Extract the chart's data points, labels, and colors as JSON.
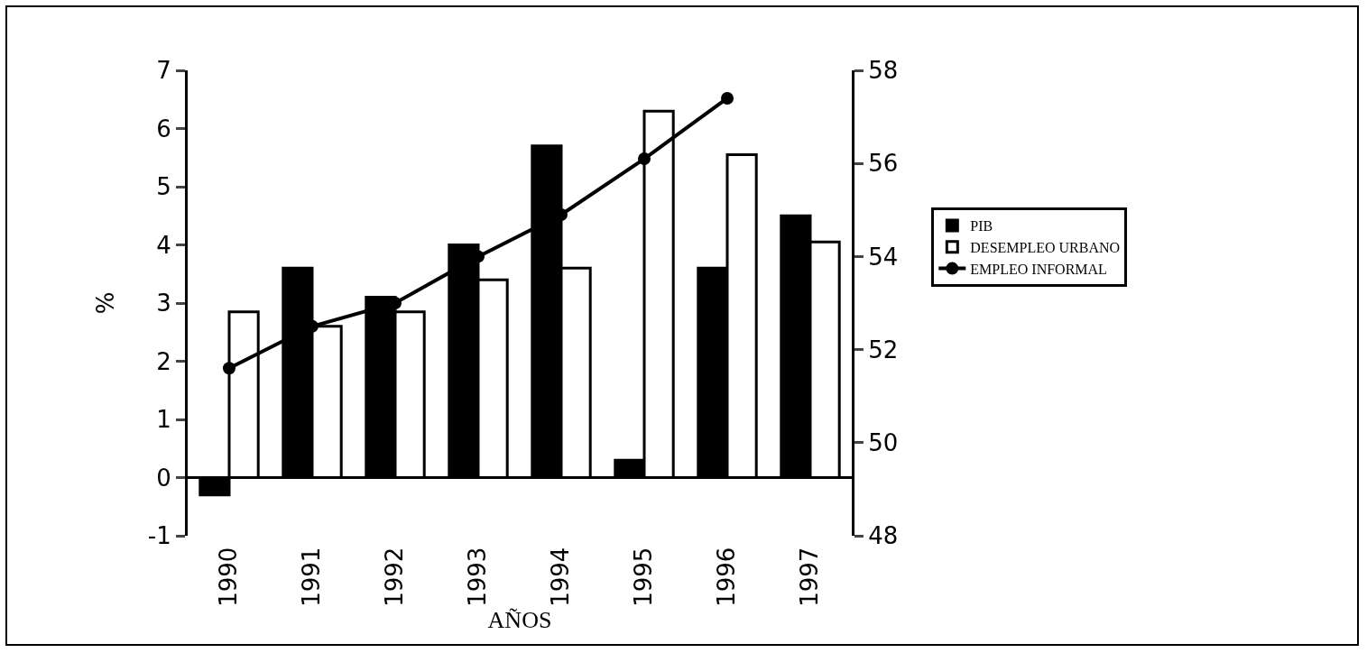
{
  "chart_data": {
    "type": "bar",
    "xlabel": "AÑOS",
    "ylabel": "%",
    "categories": [
      "1990",
      "1991",
      "1992",
      "1993",
      "1994",
      "1995",
      "1996",
      "1997"
    ],
    "series": [
      {
        "name": "PIB",
        "color": "#000000",
        "values": [
          -0.3,
          3.6,
          3.1,
          4.0,
          5.7,
          0.3,
          3.6,
          4.5
        ]
      },
      {
        "name": "DESEMPLEO URBANO",
        "color": "#ffffff",
        "values": [
          2.85,
          2.6,
          2.85,
          3.4,
          3.6,
          6.3,
          5.55,
          4.05
        ]
      },
      {
        "name": "EMPLEO INFORMAL",
        "type": "line",
        "axis": "y2",
        "color": "#000000",
        "marker": "circle",
        "values": [
          51.6,
          52.5,
          53.0,
          54.0,
          54.9,
          56.1,
          57.4,
          null
        ]
      }
    ],
    "ylim": [
      -1,
      7
    ],
    "yticks": [
      -1,
      0,
      1,
      2,
      3,
      4,
      5,
      6,
      7
    ],
    "y2lim": [
      48,
      58
    ],
    "y2ticks": [
      48,
      50,
      52,
      54,
      56,
      58
    ],
    "ref_lines": [
      {
        "axis": "y",
        "value": 0,
        "color": "#000000"
      }
    ],
    "grid": false,
    "legend": "right"
  }
}
